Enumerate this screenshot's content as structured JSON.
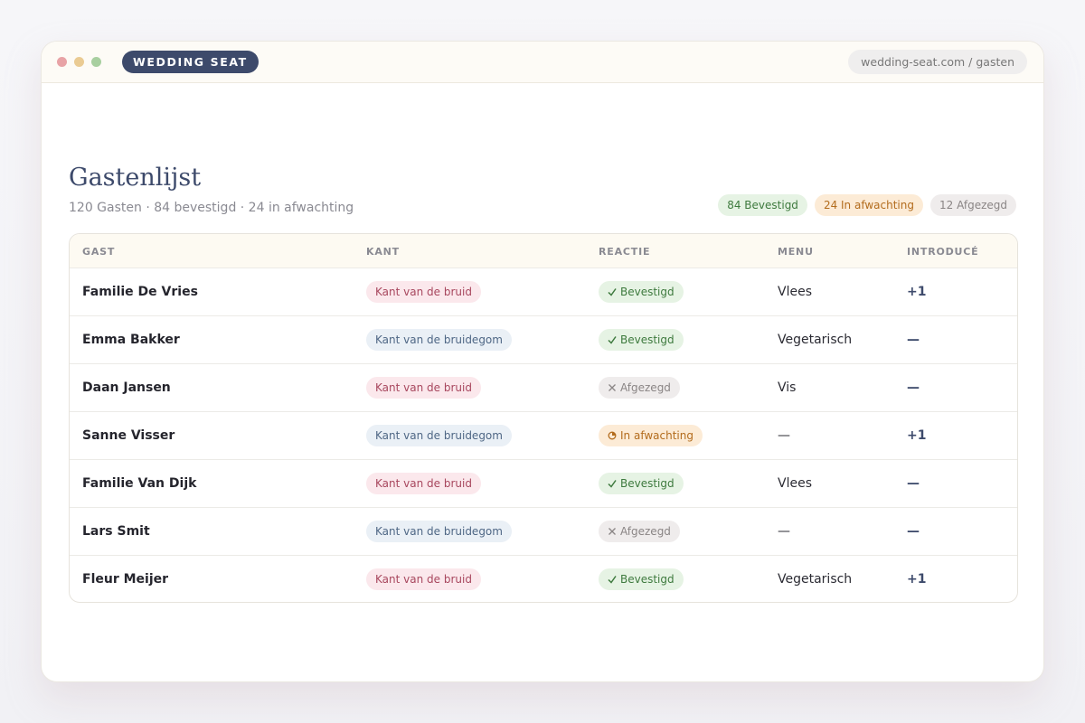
{
  "window": {
    "brand": "WEDDING SEAT",
    "url": "wedding-seat.com / gasten"
  },
  "header": {
    "title": "Gastenlijst",
    "subtitle": "120 Gasten · 84 bevestigd · 24 in afwachting",
    "badges": [
      "84 Bevestigd",
      "24 In afwachting",
      "12 Afgezegd"
    ]
  },
  "table": {
    "columns": [
      "GAST",
      "KANT",
      "REACTIE",
      "MENU",
      "INTRODUCÉ"
    ],
    "rows": [
      [
        "Familie De Vries",
        "Kant van de bruid",
        "Bevestigd",
        "Vlees",
        "+1"
      ],
      [
        "Emma Bakker",
        "Kant van de bruidegom",
        "Bevestigd",
        "Vegetarisch",
        "—"
      ],
      [
        "Daan Jansen",
        "Kant van de bruid",
        "Afgezegd",
        "Vis",
        "—"
      ],
      [
        "Sanne Visser",
        "Kant van de bruidegom",
        "In afwachting",
        "—",
        "+1"
      ],
      [
        "Familie Van Dijk",
        "Kant van de bruid",
        "Bevestigd",
        "Vlees",
        "—"
      ],
      [
        "Lars Smit",
        "Kant van de bruidegom",
        "Afgezegd",
        "—",
        "—"
      ],
      [
        "Fleur Meijer",
        "Kant van de bruid",
        "Bevestigd",
        "Vegetarisch",
        "+1"
      ]
    ]
  }
}
